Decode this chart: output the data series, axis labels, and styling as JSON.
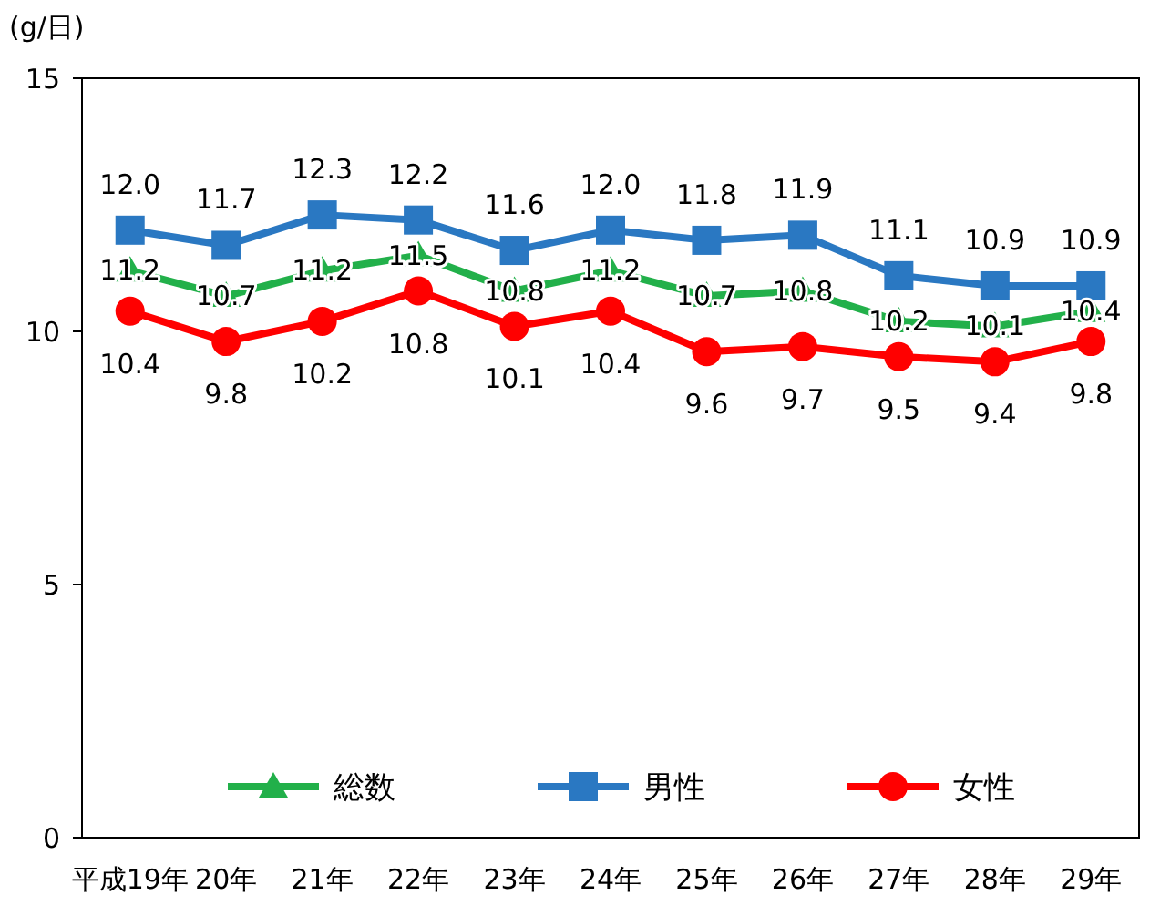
{
  "chart_data": {
    "type": "line",
    "ylabel": "(g/日)",
    "categories": [
      "平成19年",
      "20年",
      "21年",
      "22年",
      "23年",
      "24年",
      "25年",
      "26年",
      "27年",
      "28年",
      "29年"
    ],
    "series": [
      {
        "name": "総数",
        "color": "#22b04a",
        "marker": "triangle",
        "values": [
          11.2,
          10.7,
          11.2,
          11.5,
          10.8,
          11.2,
          10.7,
          10.8,
          10.2,
          10.1,
          10.4
        ],
        "value_labels": [
          "11.2",
          "10.7",
          "11.2",
          "11.5",
          "10.8",
          "11.2",
          "10.7",
          "10.8",
          "10.2",
          "10.1",
          "10.4"
        ]
      },
      {
        "name": "男性",
        "color": "#2a78c2",
        "marker": "square",
        "values": [
          12.0,
          11.7,
          12.3,
          12.2,
          11.6,
          12.0,
          11.8,
          11.9,
          11.1,
          10.9,
          10.9
        ],
        "value_labels": [
          "12.0",
          "11.7",
          "12.3",
          "12.2",
          "11.6",
          "12.0",
          "11.8",
          "11.9",
          "11.1",
          "10.9",
          "10.9"
        ]
      },
      {
        "name": "女性",
        "color": "#ff0000",
        "marker": "circle",
        "values": [
          10.4,
          9.8,
          10.2,
          10.8,
          10.1,
          10.4,
          9.6,
          9.7,
          9.5,
          9.4,
          9.8
        ],
        "value_labels": [
          "10.4",
          "9.8",
          "10.2",
          "10.8",
          "10.1",
          "10.4",
          "9.6",
          "9.7",
          "9.5",
          "9.4",
          "9.8"
        ]
      }
    ],
    "ylim": [
      0,
      15
    ],
    "yticks": [
      0,
      5,
      10,
      15
    ],
    "grid": false,
    "legend": "bottom",
    "line_style": "solid"
  }
}
